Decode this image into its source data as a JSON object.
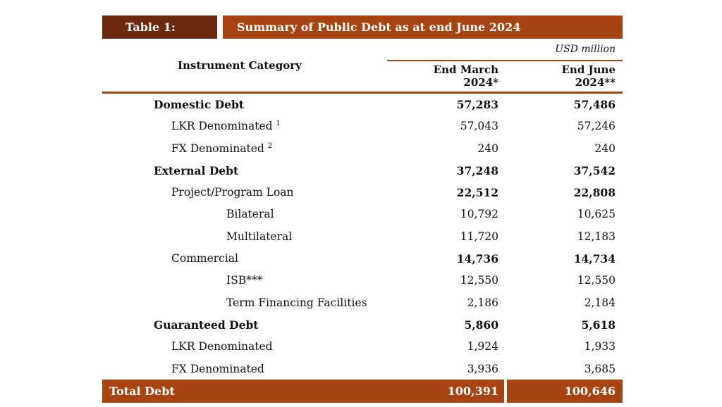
{
  "table": {
    "label": "Table 1:",
    "title": "Summary of Public Debt as at end June 2024",
    "units": "USD million",
    "header": {
      "category": "Instrument Category",
      "col1_line1": "End March",
      "col1_line2": "2024*",
      "col2_line1": "End June",
      "col2_line2": "2024**"
    },
    "rows": [
      {
        "label": "Domestic Debt",
        "sup": "",
        "v1": "57,283",
        "v2": "57,486"
      },
      {
        "label": "LKR Denominated",
        "sup": "1",
        "v1": "57,043",
        "v2": "57,246"
      },
      {
        "label": "FX Denominated",
        "sup": "2",
        "v1": "240",
        "v2": "240"
      },
      {
        "label": "External Debt",
        "sup": "",
        "v1": "37,248",
        "v2": "37,542"
      },
      {
        "label": "Project/Program Loan",
        "sup": "",
        "v1": "22,512",
        "v2": "22,808"
      },
      {
        "label": "Bilateral",
        "sup": "",
        "v1": "10,792",
        "v2": "10,625"
      },
      {
        "label": "Multilateral",
        "sup": "",
        "v1": "11,720",
        "v2": "12,183"
      },
      {
        "label": "Commercial",
        "sup": "",
        "v1": "14,736",
        "v2": "14,734"
      },
      {
        "label": "ISB***",
        "sup": "",
        "v1": "12,550",
        "v2": "12,550"
      },
      {
        "label": "Term Financing Facilities",
        "sup": "",
        "v1": "2,186",
        "v2": "2,184"
      },
      {
        "label": "Guaranteed Debt",
        "sup": "",
        "v1": "5,860",
        "v2": "5,618"
      },
      {
        "label": "LKR Denominated",
        "sup": "",
        "v1": "1,924",
        "v2": "1,933"
      },
      {
        "label": "FX Denominated",
        "sup": "",
        "v1": "3,936",
        "v2": "3,685"
      }
    ],
    "total": {
      "label": "Total Debt",
      "v1": "100,391",
      "v2": "100,646"
    },
    "colors": {
      "dark_brown": "#6b2a0f",
      "rust": "#a84412"
    }
  }
}
